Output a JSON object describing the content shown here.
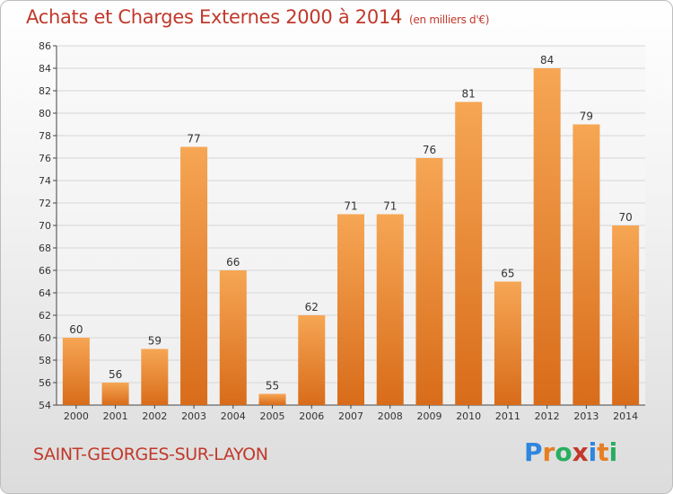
{
  "title": {
    "main": "Achats et Charges Externes 2000 à 2014",
    "unit": "(en milliers d'€)"
  },
  "commune": "SAINT-GEORGES-SUR-LAYON",
  "logo": {
    "text": "Proxiti",
    "letters": [
      {
        "ch": "P",
        "color": "#2e86de"
      },
      {
        "ch": "r",
        "color": "#e67e22"
      },
      {
        "ch": "o",
        "color": "#27ae60"
      },
      {
        "ch": "x",
        "color": "#c0392b"
      },
      {
        "ch": "i",
        "color": "#2e86de"
      },
      {
        "ch": "t",
        "color": "#e67e22"
      },
      {
        "ch": "i",
        "color": "#27ae60"
      }
    ]
  },
  "colors": {
    "bar_top": "#f6a654",
    "bar_bottom": "#d86c1a",
    "title": "#c0392b",
    "grid": "#d6d6d6",
    "axis": "#444444"
  },
  "chart_data": {
    "type": "bar",
    "title": "Achats et Charges Externes 2000 à 2014",
    "subtitle": "(en milliers d'€)",
    "xlabel": "",
    "ylabel": "",
    "categories": [
      "2000",
      "2001",
      "2002",
      "2003",
      "2004",
      "2005",
      "2006",
      "2007",
      "2008",
      "2009",
      "2010",
      "2011",
      "2012",
      "2013",
      "2014"
    ],
    "values": [
      60,
      56,
      59,
      77,
      66,
      55,
      62,
      71,
      71,
      76,
      81,
      65,
      84,
      79,
      70
    ],
    "ylim": [
      54,
      86
    ],
    "ytick_step": 2,
    "grid": true,
    "data_labels": true,
    "legend": "none"
  }
}
